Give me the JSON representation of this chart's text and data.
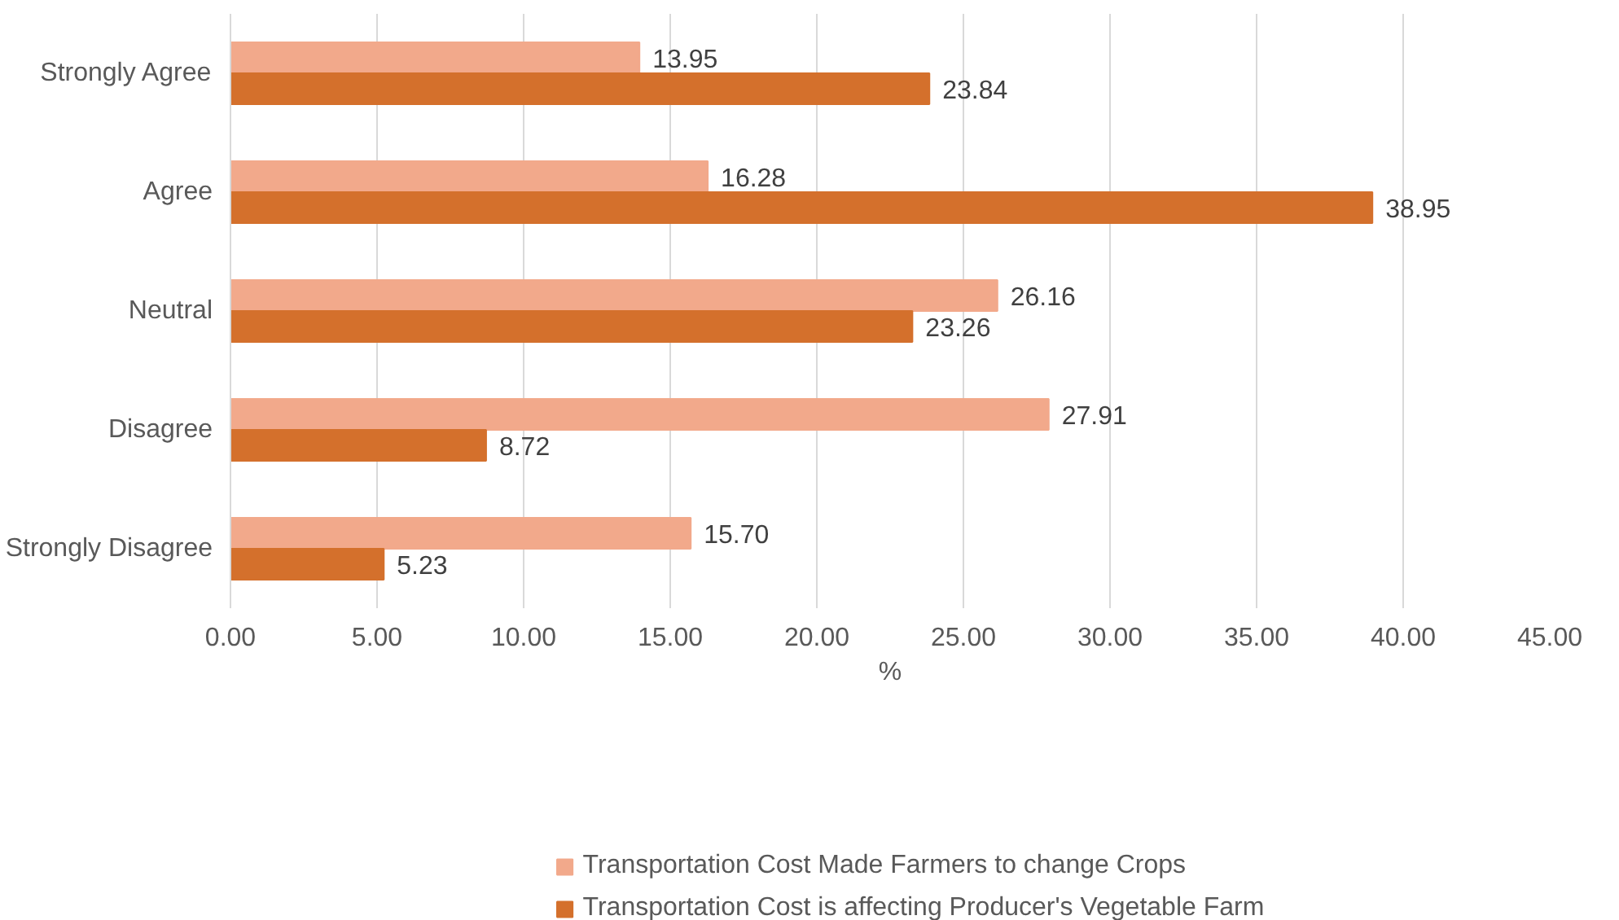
{
  "chart_data": {
    "type": "bar",
    "orientation": "horizontal",
    "xlabel": "%",
    "categories": [
      "Strongly Agree",
      "Agree",
      "Neutral",
      "Disagree",
      "Strongly Disagree"
    ],
    "series": [
      {
        "name": "Transportation Cost Made Farmers to change Crops",
        "color": "#f2a98b",
        "values": [
          13.95,
          16.28,
          26.16,
          27.91,
          15.7
        ],
        "value_labels": [
          "13.95",
          "16.28",
          "26.16",
          "27.91",
          "15.70"
        ]
      },
      {
        "name": "Transportation Cost is affecting Producer's Vegetable Farm",
        "color": "#d4702c",
        "values": [
          23.84,
          38.95,
          23.26,
          8.72,
          5.23
        ],
        "value_labels": [
          "23.84",
          "38.95",
          "23.26",
          "8.72",
          "5.23"
        ]
      }
    ],
    "xlim": [
      0,
      45
    ],
    "xticks": [
      {
        "value": 0,
        "label": "0.00"
      },
      {
        "value": 5,
        "label": "5.00"
      },
      {
        "value": 10,
        "label": "10.00"
      },
      {
        "value": 15,
        "label": "15.00"
      },
      {
        "value": 20,
        "label": "20.00"
      },
      {
        "value": 25,
        "label": "25.00"
      },
      {
        "value": 30,
        "label": "30.00"
      },
      {
        "value": 35,
        "label": "35.00"
      },
      {
        "value": 40,
        "label": "40.00"
      },
      {
        "value": 45,
        "label": "45.00"
      }
    ],
    "grid": "x",
    "legend": "bottom"
  }
}
